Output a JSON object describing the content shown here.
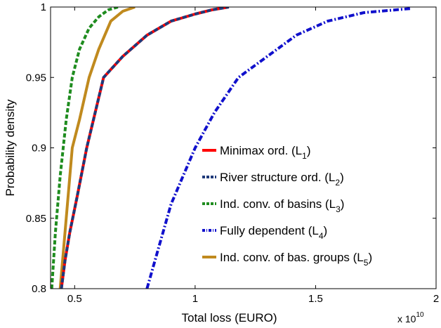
{
  "chart_data": {
    "type": "line",
    "xlabel": "Total loss (EURO)",
    "ylabel": "Probability density",
    "x_multiplier_base": "x 10",
    "x_multiplier_exp": "10",
    "xlim": [
      0.4,
      2.0
    ],
    "ylim": [
      0.8,
      1.0
    ],
    "x_ticks": [
      0.5,
      1.0,
      1.5,
      2.0
    ],
    "x_tick_labels": [
      "0.5",
      "1",
      "1.5",
      "2"
    ],
    "y_ticks": [
      0.8,
      0.85,
      0.9,
      0.95,
      1.0
    ],
    "y_tick_labels": [
      "0.8",
      "0.85",
      "0.9",
      "0.95",
      "1"
    ],
    "grid": false,
    "legend_position": "right",
    "series": [
      {
        "name": "Minimax ord. (L",
        "sub": "1",
        "name_end": ")",
        "color": "#ff0000",
        "dash": "solid",
        "x": [
          0.445,
          0.46,
          0.48,
          0.51,
          0.55,
          0.62,
          0.7,
          0.8,
          0.9,
          1.0,
          1.07,
          1.14
        ],
        "y": [
          0.8,
          0.82,
          0.84,
          0.865,
          0.9,
          0.95,
          0.965,
          0.98,
          0.99,
          0.995,
          0.998,
          1.0
        ]
      },
      {
        "name": "River structure ord. (L",
        "sub": "2",
        "name_end": ")",
        "color": "#1f3a7a",
        "dash": "dash",
        "x": [
          0.445,
          0.46,
          0.48,
          0.51,
          0.55,
          0.62,
          0.7,
          0.8,
          0.9,
          1.0,
          1.07,
          1.14
        ],
        "y": [
          0.8,
          0.82,
          0.84,
          0.865,
          0.9,
          0.95,
          0.965,
          0.98,
          0.99,
          0.995,
          0.998,
          1.0
        ]
      },
      {
        "name": "Ind. conv. of basins (L",
        "sub": "3",
        "name_end": ")",
        "color": "#1f8c1f",
        "dash": "dash",
        "x": [
          0.405,
          0.42,
          0.44,
          0.465,
          0.49,
          0.52,
          0.56,
          0.6,
          0.64,
          0.68
        ],
        "y": [
          0.8,
          0.84,
          0.88,
          0.92,
          0.95,
          0.97,
          0.985,
          0.993,
          0.998,
          1.0
        ]
      },
      {
        "name": "Fully dependent (L",
        "sub": "4",
        "name_end": ")",
        "color": "#1010cc",
        "dash": "dashdot",
        "x": [
          0.8,
          0.85,
          0.9,
          0.95,
          1.0,
          1.08,
          1.18,
          1.3,
          1.42,
          1.55,
          1.7,
          1.9
        ],
        "y": [
          0.8,
          0.83,
          0.86,
          0.88,
          0.9,
          0.925,
          0.95,
          0.965,
          0.98,
          0.99,
          0.996,
          0.999
        ]
      },
      {
        "name": "Ind. conv. of bas. groups (L",
        "sub": "5",
        "name_end": ")",
        "color": "#c08a1e",
        "dash": "solid",
        "x": [
          0.44,
          0.465,
          0.49,
          0.52,
          0.56,
          0.6,
          0.65,
          0.7,
          0.75
        ],
        "y": [
          0.8,
          0.85,
          0.9,
          0.92,
          0.95,
          0.97,
          0.99,
          0.997,
          1.0
        ]
      }
    ]
  }
}
